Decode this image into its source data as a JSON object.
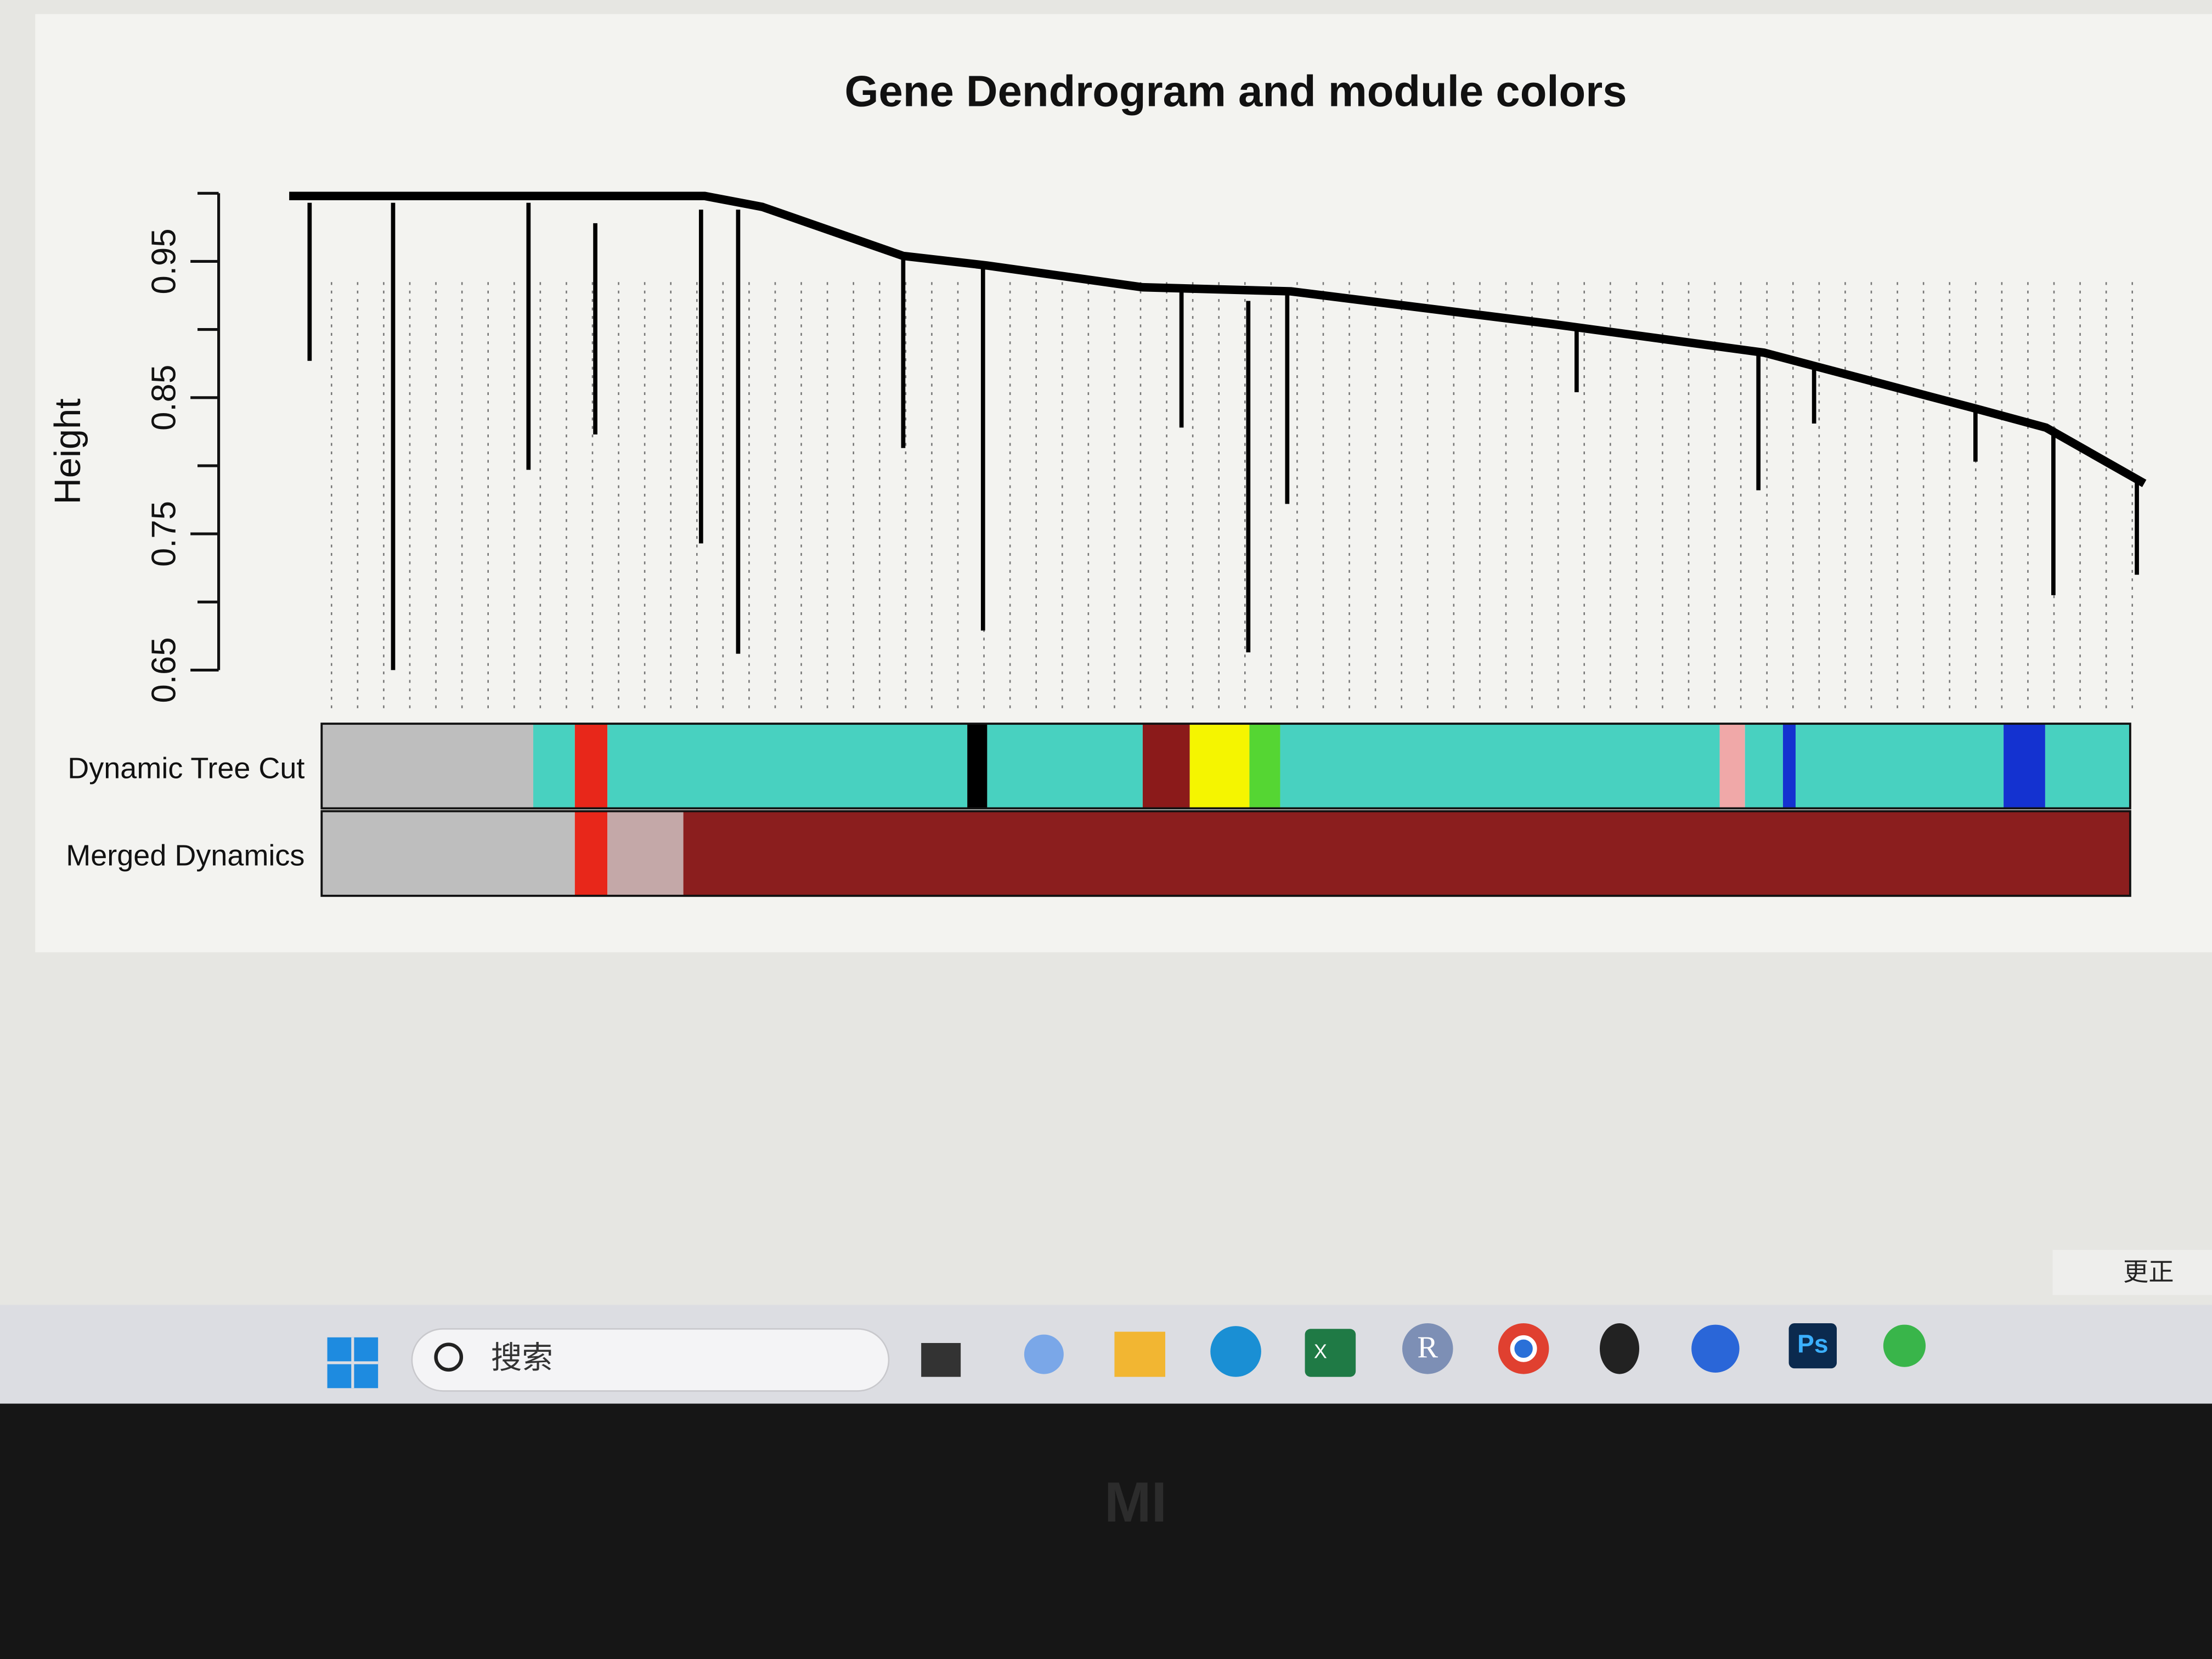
{
  "chart_data": {
    "type": "dendrogram",
    "title": "Gene Dendrogram and module colors",
    "ylabel": "Height",
    "ylim": [
      0.65,
      1.0
    ],
    "yticks": [
      0.65,
      0.75,
      0.85,
      0.95
    ],
    "minor_yticks": [
      0.7,
      0.8,
      0.9,
      1.0
    ],
    "line_color": "#000000",
    "backbone": {
      "x": [
        0,
        0.141,
        0.224,
        0.255,
        0.331,
        0.376,
        0.46,
        0.54,
        0.681,
        0.795,
        0.909,
        0.947,
        1
      ],
      "heights": [
        0.998,
        0.998,
        0.998,
        0.99,
        0.954,
        0.947,
        0.931,
        0.928,
        0.904,
        0.883,
        0.842,
        0.828,
        0.787
      ]
    },
    "branches": [
      {
        "x": 0.011,
        "top": 0.993,
        "bottom": 0.877
      },
      {
        "x": 0.056,
        "top": 0.993,
        "bottom": 0.65
      },
      {
        "x": 0.129,
        "top": 0.993,
        "bottom": 0.797
      },
      {
        "x": 0.165,
        "top": 0.978,
        "bottom": 0.823
      },
      {
        "x": 0.222,
        "top": 0.988,
        "bottom": 0.743
      },
      {
        "x": 0.242,
        "top": 0.988,
        "bottom": 0.662
      },
      {
        "x": 0.331,
        "top": 0.954,
        "bottom": 0.813
      },
      {
        "x": 0.374,
        "top": 0.947,
        "bottom": 0.679
      },
      {
        "x": 0.481,
        "top": 0.931,
        "bottom": 0.828
      },
      {
        "x": 0.517,
        "top": 0.921,
        "bottom": 0.663
      },
      {
        "x": 0.538,
        "top": 0.926,
        "bottom": 0.772
      },
      {
        "x": 0.694,
        "top": 0.9,
        "bottom": 0.854
      },
      {
        "x": 0.792,
        "top": 0.883,
        "bottom": 0.782
      },
      {
        "x": 0.822,
        "top": 0.875,
        "bottom": 0.831
      },
      {
        "x": 0.909,
        "top": 0.842,
        "bottom": 0.803
      },
      {
        "x": 0.951,
        "top": 0.828,
        "bottom": 0.705
      },
      {
        "x": 0.996,
        "top": 0.792,
        "bottom": 0.72
      }
    ],
    "color_rows": [
      {
        "name": "Dynamic Tree Cut",
        "segments": [
          {
            "color": "#bebebe",
            "start": 0,
            "end": 0.117
          },
          {
            "color": "#48d1c0",
            "start": 0.117,
            "end": 0.14
          },
          {
            "color": "#e8271a",
            "start": 0.14,
            "end": 0.158
          },
          {
            "color": "#48d1c0",
            "start": 0.158,
            "end": 0.357
          },
          {
            "color": "#000000",
            "start": 0.357,
            "end": 0.368
          },
          {
            "color": "#48d1c0",
            "start": 0.368,
            "end": 0.454
          },
          {
            "color": "#8b1a1a",
            "start": 0.454,
            "end": 0.48
          },
          {
            "color": "#f5f500",
            "start": 0.48,
            "end": 0.513
          },
          {
            "color": "#55d633",
            "start": 0.513,
            "end": 0.53
          },
          {
            "color": "#48d1c0",
            "start": 0.53,
            "end": 0.773
          },
          {
            "color": "#f0a8a8",
            "start": 0.773,
            "end": 0.787
          },
          {
            "color": "#48d1c0",
            "start": 0.787,
            "end": 0.808
          },
          {
            "color": "#1432d0",
            "start": 0.808,
            "end": 0.815
          },
          {
            "color": "#48d1c0",
            "start": 0.815,
            "end": 0.93
          },
          {
            "color": "#1432d0",
            "start": 0.93,
            "end": 0.953
          },
          {
            "color": "#48d1c0",
            "start": 0.953,
            "end": 1
          }
        ]
      },
      {
        "name": "Merged Dynamics",
        "segments": [
          {
            "color": "#bebebe",
            "start": 0,
            "end": 0.14
          },
          {
            "color": "#e8271a",
            "start": 0.14,
            "end": 0.158
          },
          {
            "color": "#c4a8a8",
            "start": 0.158,
            "end": 0.2
          },
          {
            "color": "#8b1e1e",
            "start": 0.2,
            "end": 1
          }
        ]
      }
    ]
  },
  "taskbar": {
    "search": "搜索",
    "excel_icon": "X",
    "r_icon": "R",
    "ps_icon": "Ps",
    "notification": "更正"
  },
  "bezel_logo": "MI"
}
